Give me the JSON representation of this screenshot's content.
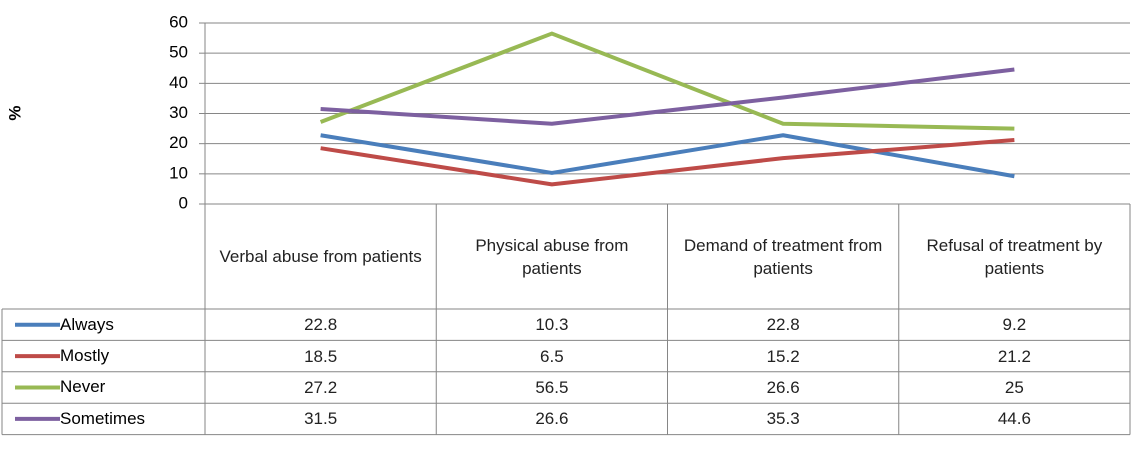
{
  "chart_data": {
    "type": "line",
    "y_label": "%",
    "categories": [
      "Verbal abuse from patients",
      "Physical abuse from patients",
      "Demand of treatment from patients",
      "Refusal of treatment by patients"
    ],
    "series": [
      {
        "name": "Always",
        "color": "#4a7ebb",
        "values": [
          22.8,
          10.3,
          22.8,
          9.2
        ]
      },
      {
        "name": "Mostly",
        "color": "#be4b48",
        "values": [
          18.5,
          6.5,
          15.2,
          21.2
        ]
      },
      {
        "name": "Never",
        "color": "#98b954",
        "values": [
          27.2,
          56.5,
          26.6,
          25
        ]
      },
      {
        "name": "Sometimes",
        "color": "#7d60a0",
        "values": [
          31.5,
          26.6,
          35.3,
          44.6
        ]
      }
    ],
    "ylim": [
      0,
      60
    ],
    "yticks": [
      0,
      10,
      20,
      30,
      40,
      50,
      60
    ],
    "grid": true,
    "data_table": true
  }
}
